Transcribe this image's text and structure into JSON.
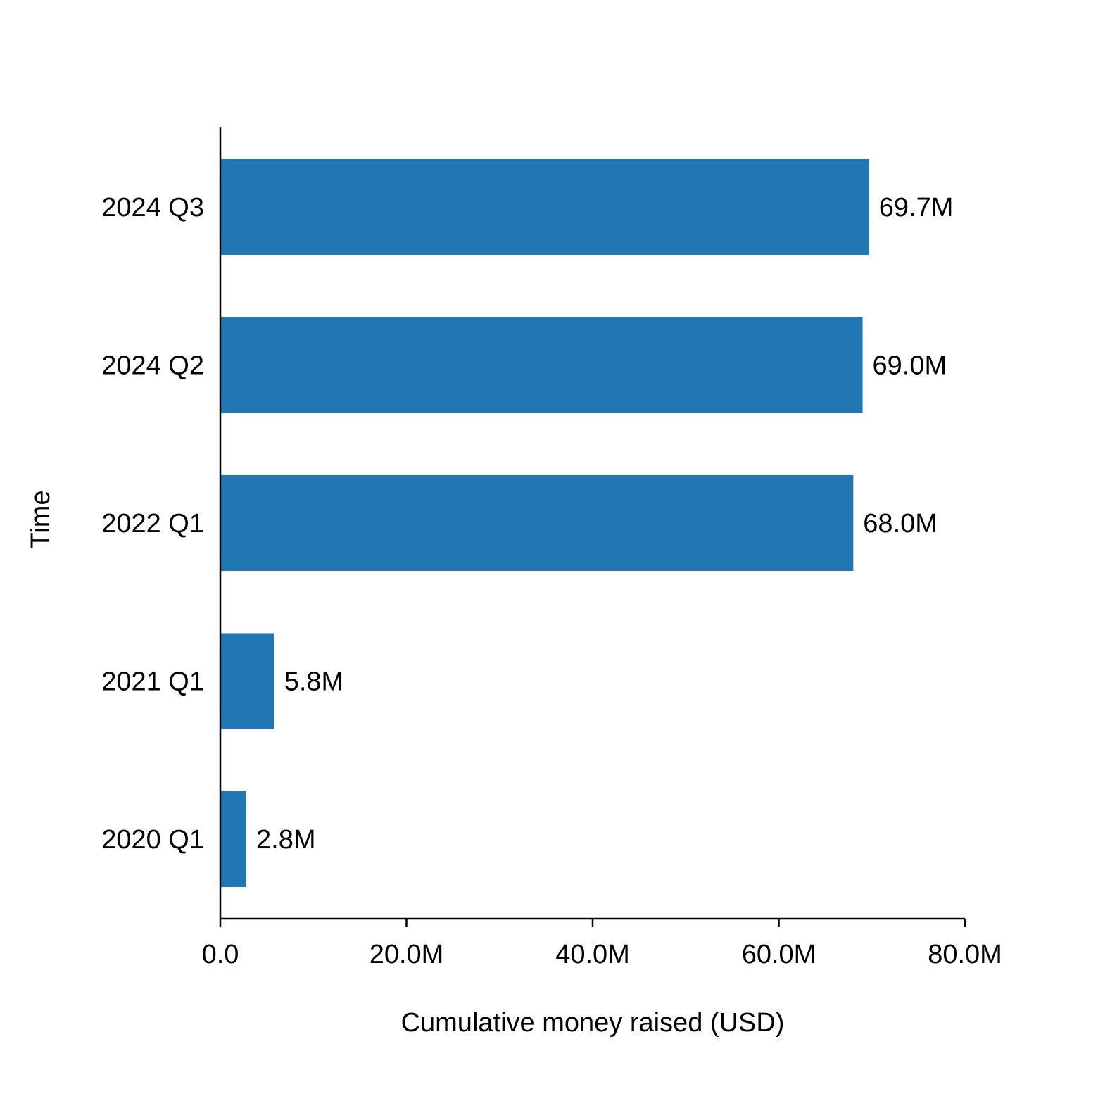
{
  "chart_data": {
    "type": "bar",
    "orientation": "horizontal",
    "categories": [
      "2024 Q3",
      "2024 Q2",
      "2022 Q1",
      "2021 Q1",
      "2020 Q1"
    ],
    "values": [
      69.7,
      69.0,
      68.0,
      5.8,
      2.8
    ],
    "value_unit": "M",
    "data_labels": [
      "69.7M",
      "69.0M",
      "68.0M",
      "5.8M",
      "2.8M"
    ],
    "xlabel": "Cumulative money raised (USD)",
    "ylabel": "Time",
    "xlim": [
      0,
      80
    ],
    "xticks": [
      0,
      20,
      40,
      60,
      80
    ],
    "xtick_labels": [
      "0.0",
      "20.0M",
      "40.0M",
      "60.0M",
      "80.0M"
    ],
    "bar_color": "#2077b4",
    "grid": false,
    "legend": null
  }
}
